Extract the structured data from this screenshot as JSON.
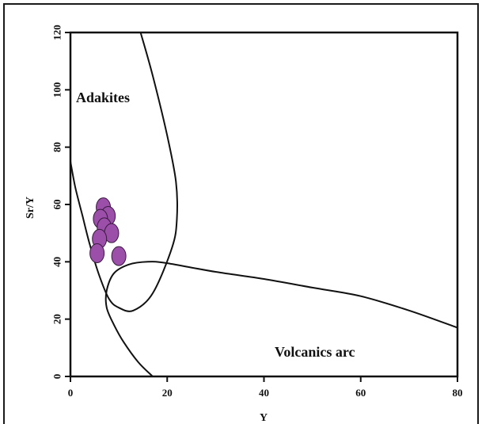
{
  "chart_data": {
    "type": "scatter",
    "title": "",
    "xlabel": "Y",
    "ylabel": "Sr/Y",
    "xlim": [
      0,
      80
    ],
    "ylim": [
      0,
      120
    ],
    "xticks": [
      0,
      20,
      40,
      60,
      80
    ],
    "yticks": [
      0,
      20,
      40,
      60,
      80,
      100,
      120
    ],
    "grid": false,
    "marker_color": "#9b4fa8",
    "marker_edge": "#3a1a40",
    "points": [
      {
        "x": 6.8,
        "y": 59
      },
      {
        "x": 7.8,
        "y": 56
      },
      {
        "x": 6.2,
        "y": 55
      },
      {
        "x": 7.0,
        "y": 52
      },
      {
        "x": 8.5,
        "y": 50
      },
      {
        "x": 6.0,
        "y": 48
      },
      {
        "x": 5.5,
        "y": 43
      },
      {
        "x": 10.0,
        "y": 42
      }
    ],
    "fields": [
      {
        "label": "Adakites",
        "boundary": [
          [
            14.5,
            120
          ],
          [
            17,
            105
          ],
          [
            20,
            84
          ],
          [
            21.8,
            68
          ],
          [
            22,
            55
          ],
          [
            21,
            45
          ],
          [
            17,
            29
          ],
          [
            13,
            23
          ],
          [
            10,
            24
          ],
          [
            8,
            27
          ],
          [
            6,
            35
          ],
          [
            4,
            46
          ],
          [
            2.5,
            56
          ],
          [
            1,
            66
          ],
          [
            0,
            75
          ]
        ]
      },
      {
        "label": "Volcanics arc",
        "boundary": [
          [
            80,
            17
          ],
          [
            70,
            23
          ],
          [
            60,
            28
          ],
          [
            50,
            31
          ],
          [
            40,
            34
          ],
          [
            30,
            36.5
          ],
          [
            20,
            39.5
          ],
          [
            16,
            40
          ],
          [
            12,
            39
          ],
          [
            9,
            36
          ],
          [
            7.5,
            30
          ],
          [
            7.5,
            24
          ],
          [
            9,
            18
          ],
          [
            11,
            12
          ],
          [
            14,
            5
          ],
          [
            17,
            0
          ]
        ]
      }
    ],
    "annotations": [
      "Adakites",
      "Volcanics arc"
    ]
  }
}
